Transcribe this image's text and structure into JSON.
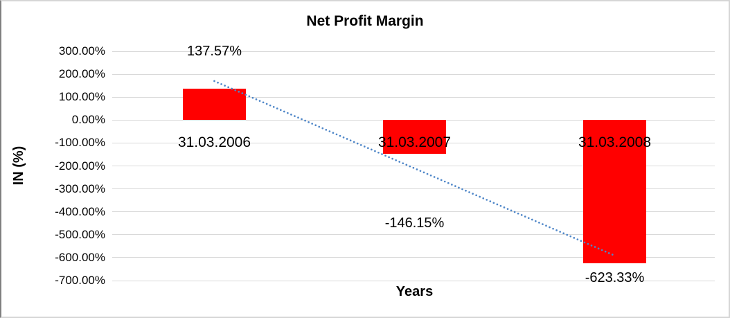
{
  "chart_data": {
    "type": "bar",
    "title": "Net Profit Margin",
    "xlabel": "Years",
    "ylabel": "IN (%)",
    "categories": [
      "31.03.2006",
      "31.03.2007",
      "31.03.2008"
    ],
    "series": [
      {
        "name": "Net Profit Margin",
        "values": [
          137.57,
          -146.15,
          -623.33
        ]
      }
    ],
    "data_labels": [
      "137.57%",
      "-146.15%",
      "-623.33%"
    ],
    "ylim": [
      -700,
      300
    ],
    "ytick_step": 100,
    "ytick_labels": [
      "300.00%",
      "200.00%",
      "100.00%",
      "0.00%",
      "-100.00%",
      "-200.00%",
      "-300.00%",
      "-400.00%",
      "-500.00%",
      "-600.00%",
      "-700.00%"
    ],
    "grid": true,
    "legend": "none",
    "bar_color": "#ff0000",
    "gridline_color": "#d9d9d9",
    "trendline": {
      "type": "linear",
      "style": "dotted",
      "color": "#4e86c8",
      "start_value": 170,
      "end_value": -591
    }
  }
}
